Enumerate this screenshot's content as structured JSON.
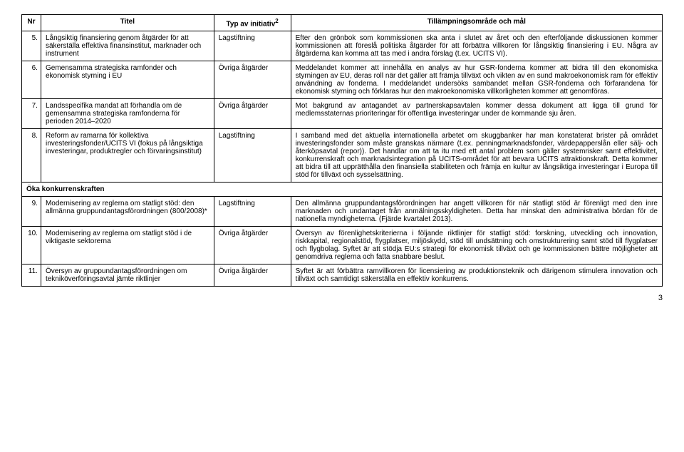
{
  "headers": {
    "nr": "Nr",
    "titel": "Titel",
    "typ": "Typ av initiativ",
    "typ_sup": "2",
    "mal": "Tillämpningsområde och mål"
  },
  "section1": "Öka konkurrenskraften",
  "rows": [
    {
      "nr": "5.",
      "titel": "Långsiktig finansiering genom åtgärder för att säkerställa effektiva finansinstitut, marknader och instrument",
      "typ": "Lagstiftning",
      "mal": "Efter den grönbok som kommissionen ska anta i slutet av året och den efterföljande diskussionen kommer kommissionen att föreslå politiska åtgärder för att förbättra villkoren för långsiktig finansiering i EU. Några av åtgärderna kan komma att tas med i andra förslag (t.ex. UCITS VI)."
    },
    {
      "nr": "6.",
      "titel": "Gemensamma strategiska ramfonder och ekonomisk styrning i EU",
      "typ": "Övriga åtgärder",
      "mal": "Meddelandet kommer att innehålla en analys av hur GSR-fonderna kommer att bidra till den ekonomiska styrningen av EU, deras roll när det gäller att främja tillväxt och vikten av en sund makroekonomisk ram för effektiv användning av fonderna. I meddelandet undersöks sambandet mellan GSR-fonderna och förfarandena för ekonomisk styrning och förklaras hur den makroekonomiska villkorligheten kommer att genomföras."
    },
    {
      "nr": "7.",
      "titel": "Landsspecifika mandat att förhandla om de gemensamma strategiska ramfonderna för perioden 2014–2020",
      "typ": "Övriga åtgärder",
      "mal": "Mot bakgrund av antagandet av partnerskapsavtalen kommer dessa dokument att ligga till grund för medlemsstaternas prioriteringar för offentliga investeringar under de kommande sju åren."
    },
    {
      "nr": "8.",
      "titel": "Reform av ramarna för kollektiva investeringsfonder/UCITS VI (fokus på långsiktiga investeringar, produktregler och förvaringsinstitut)",
      "typ": "Lagstiftning",
      "mal": "I samband med det aktuella internationella arbetet om skuggbanker har man konstaterat brister på området investeringsfonder som måste granskas närmare (t.ex. penningmarknadsfonder, värdepapperslån eller sälj- och återköpsavtal (repor)). Det handlar om att ta itu med ett antal problem som gäller systemrisker samt effektivitet, konkurrenskraft och marknadsintegration på UCITS-området för att bevara UCITS attraktionskraft. Detta kommer att bidra till att upprätthålla den finansiella stabiliteten och främja en kultur av långsiktiga investeringar i Europa till stöd för tillväxt och sysselsättning."
    }
  ],
  "rows2": [
    {
      "nr": "9.",
      "titel": "Modernisering av reglerna om statligt stöd: den allmänna gruppundantagsförordningen (800/2008)*",
      "typ": "Lagstiftning",
      "mal": "Den allmänna gruppundantagsförordningen har angett villkoren för när statligt stöd är förenligt med den inre marknaden och undantaget från anmälningsskyldigheten. Detta har minskat den administrativa bördan för de nationella myndigheterna. (Fjärde kvartalet 2013)."
    },
    {
      "nr": "10.",
      "titel": "Modernisering av reglerna om statligt stöd i de viktigaste sektorerna",
      "typ": "Övriga åtgärder",
      "mal": "Översyn av förenlighetskriterierna i följande riktlinjer för statligt stöd: forskning, utveckling och innovation, riskkapital, regionalstöd, flygplatser, miljöskydd, stöd till undsättning och omstrukturering samt stöd till flygplatser och flygbolag. Syftet är att stödja EU:s strategi för ekonomisk tillväxt och ge kommissionen bättre möjligheter att genomdriva reglerna och fatta snabbare beslut."
    },
    {
      "nr": "11.",
      "titel": "Översyn av gruppundantagsförordningen om tekniköverföringsavtal jämte riktlinjer",
      "typ": "Övriga åtgärder",
      "mal": "Syftet är att förbättra ramvillkoren för licensiering av produktionsteknik och därigenom stimulera innovation och tillväxt och samtidigt säkerställa en effektiv konkurrens."
    }
  ],
  "pageNum": "3"
}
